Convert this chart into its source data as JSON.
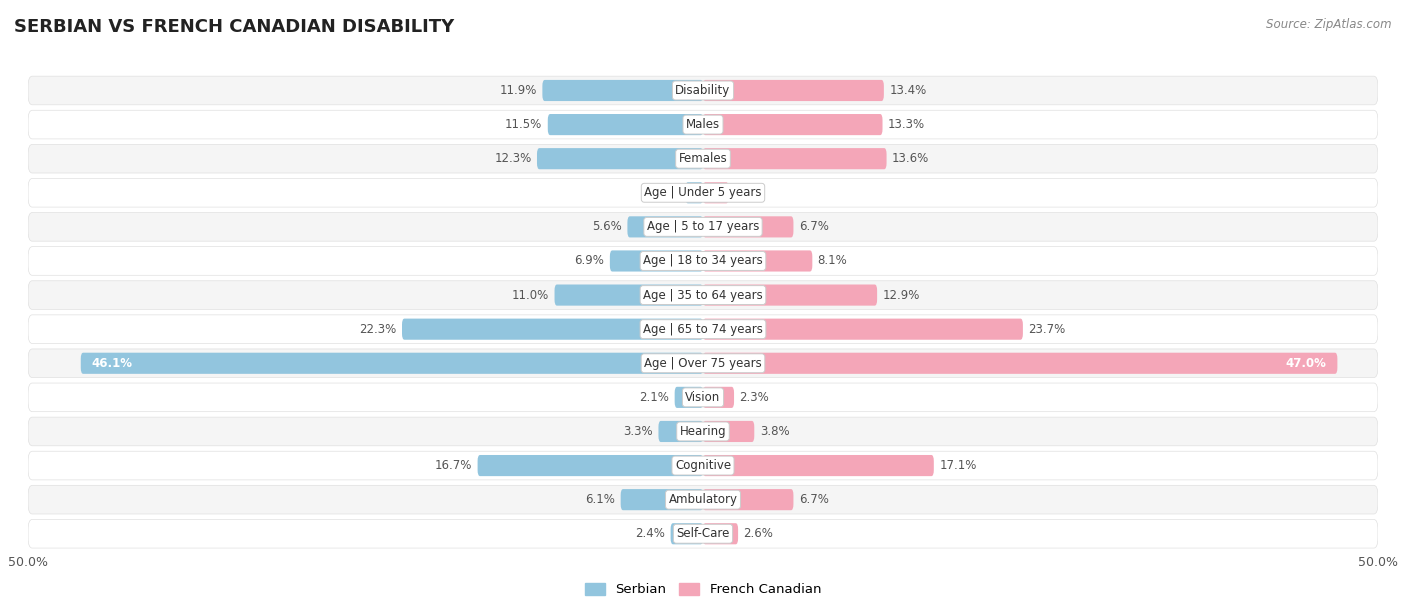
{
  "title": "SERBIAN VS FRENCH CANADIAN DISABILITY",
  "source": "Source: ZipAtlas.com",
  "categories": [
    "Disability",
    "Males",
    "Females",
    "Age | Under 5 years",
    "Age | 5 to 17 years",
    "Age | 18 to 34 years",
    "Age | 35 to 64 years",
    "Age | 65 to 74 years",
    "Age | Over 75 years",
    "Vision",
    "Hearing",
    "Cognitive",
    "Ambulatory",
    "Self-Care"
  ],
  "serbian": [
    11.9,
    11.5,
    12.3,
    1.3,
    5.6,
    6.9,
    11.0,
    22.3,
    46.1,
    2.1,
    3.3,
    16.7,
    6.1,
    2.4
  ],
  "french_canadian": [
    13.4,
    13.3,
    13.6,
    1.9,
    6.7,
    8.1,
    12.9,
    23.7,
    47.0,
    2.3,
    3.8,
    17.1,
    6.7,
    2.6
  ],
  "max_val": 50.0,
  "serbian_color": "#92c5de",
  "french_canadian_color": "#f4a6b8",
  "serbian_color_dark": "#6aafd4",
  "french_canadian_color_dark": "#ee85a0",
  "bg_color_light": "#f5f5f5",
  "bg_color_white": "#ffffff",
  "bar_height": 0.62,
  "title_fontsize": 13,
  "label_fontsize": 8.5,
  "value_fontsize": 8.5,
  "source_fontsize": 8.5,
  "row_padding": 0.08
}
